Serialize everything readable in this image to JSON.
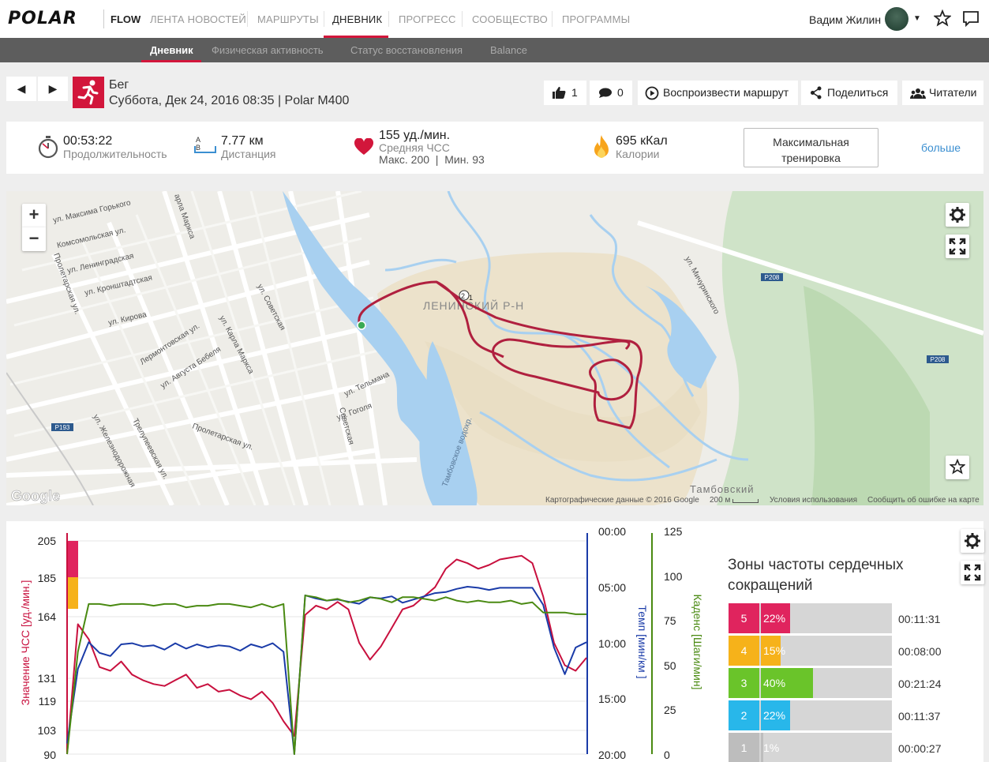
{
  "nav": {
    "logo": "POLAR",
    "flow": "FLOW",
    "items": [
      "ЛЕНТА НОВОСТЕЙ",
      "МАРШРУТЫ",
      "ДНЕВНИК",
      "ПРОГРЕСС",
      "СООБЩЕСТВО",
      "ПРОГРАММЫ"
    ],
    "active_index": 2,
    "user_name": "Вадим Жилин"
  },
  "subnav": {
    "items": [
      "Дневник",
      "Физическая активность",
      "Статус восстановления",
      "Balance"
    ],
    "active_index": 0
  },
  "session": {
    "sport": "Бег",
    "subtitle": "Суббота, Дек 24, 2016 08:35 | Polar M400",
    "likes": "1",
    "comments": "0",
    "replay_label": "Воспроизвести маршрут",
    "share_label": "Поделиться",
    "readers_label": "Читатели"
  },
  "summary": {
    "duration": "00:53:22",
    "duration_label": "Продолжительность",
    "distance": "7.77 км",
    "distance_label": "Дистанция",
    "distance_icon_text": "A B",
    "hr_value": "155 уд./мин.",
    "hr_label": "Средняя ЧСС",
    "hr_minmax": "Макс. 200  |  Мин. 93",
    "calories": "695 кКал",
    "calories_label": "Калории",
    "training_benefit": "Максимальная тренировка",
    "more_label": "больше"
  },
  "map": {
    "zoom_in": "+",
    "zoom_out": "−",
    "district_label": "ЛЕНИНСКИЙ Р-Н",
    "bottom_label": "Тамбовский",
    "lake_label": "Тамбовское водохр.",
    "google": "Google",
    "attribution": "Картографические данные © 2016 Google",
    "scale": "200 м",
    "terms": "Условия использования",
    "report": "Сообщить об ошибке на карте",
    "route_markers": [
      "2",
      "1"
    ],
    "road_labels": [
      "P208",
      "P208",
      "P193"
    ],
    "streets": [
      "ул. Максима Горького",
      "Комсомольская ул.",
      "ул. Ленинградская",
      "ул. Кронштадтская",
      "ул. Кирова",
      "Лермонтовская ул.",
      "ул. Августа Бебеля",
      "ул. Карла Маркса",
      "ул. Советская",
      "ул. Тельмана",
      "ул. Гоголя",
      "Пролетарская ул.",
      "ул. Железнодорожная",
      "Трелупеевская ул.",
      "ул. Мичуринского",
      "Советская",
      "арла Маркса"
    ]
  },
  "chart_data": {
    "type": "line",
    "title": "",
    "x_axis_visible_ticks": "partially cut off at bottom",
    "axes": {
      "hr": {
        "label": "Значение ЧСС [уд./мин.]",
        "ticks": [
          "205",
          "185",
          "164",
          "131",
          "119",
          "103",
          "90"
        ],
        "color": "#c8103e"
      },
      "pace": {
        "label": "Темп [мин/км ]",
        "ticks": [
          "00:00",
          "05:00",
          "10:00",
          "15:00",
          "20:00"
        ],
        "color": "#1a3ba8"
      },
      "cadence": {
        "label": "Каденс [Шаги/мин]",
        "ticks": [
          "125",
          "100",
          "75",
          "50",
          "25",
          "0"
        ],
        "color": "#4a8a12"
      }
    },
    "zone_bands": {
      "zones": [
        "5",
        "4"
      ],
      "colors": [
        "#e0245e",
        "#f6b21a"
      ]
    },
    "series": [
      {
        "name": "Значение ЧСС [уд./мин.]",
        "color": "#c8103e",
        "values": [
          90,
          160,
          152,
          137,
          135,
          140,
          133,
          130,
          128,
          127,
          130,
          133,
          126,
          128,
          124,
          125,
          122,
          120,
          124,
          118,
          108,
          100,
          165,
          170,
          168,
          172,
          168,
          150,
          141,
          148,
          158,
          168,
          170,
          175,
          180,
          190,
          195,
          193,
          190,
          192,
          195,
          196,
          197,
          193,
          175,
          150,
          138,
          135,
          142
        ]
      },
      {
        "name": "Темп [мин/км ]",
        "color": "#1a3ba8",
        "values": [
          19,
          12,
          9.5,
          10.5,
          10.8,
          9.7,
          9.6,
          9.9,
          9.8,
          10.2,
          9.6,
          10.1,
          9.7,
          10.0,
          9.8,
          9.9,
          10.3,
          9.7,
          10.0,
          9.6,
          10.4,
          20,
          5.1,
          5.4,
          5.6,
          5.5,
          5.7,
          5.9,
          5.3,
          5.4,
          5.2,
          5.8,
          5.5,
          5.2,
          4.9,
          4.8,
          4.5,
          4.3,
          4.4,
          4.6,
          4.4,
          4.4,
          4.4,
          4.4,
          6.0,
          10.0,
          12.5,
          10.0,
          9.5
        ]
      },
      {
        "name": "Каденс [Шаги/мин]",
        "color": "#4a8a12",
        "values": [
          0,
          60,
          88,
          88,
          87,
          88,
          88,
          88,
          87,
          88,
          88,
          86,
          87,
          87,
          88,
          88,
          87,
          86,
          88,
          86,
          88,
          0,
          93,
          92,
          90,
          91,
          89,
          90,
          92,
          91,
          89,
          92,
          92,
          91,
          90,
          92,
          90,
          89,
          90,
          89,
          89,
          90,
          88,
          89,
          83,
          83,
          83,
          82,
          82
        ]
      }
    ]
  },
  "zones": {
    "title": "Зоны частоты сердечных сокращений",
    "rows": [
      {
        "zone": "5",
        "pct": "22%",
        "time": "00:11:31",
        "color": "#e0245e",
        "fill": 0.22
      },
      {
        "zone": "4",
        "pct": "15%",
        "time": "00:08:00",
        "color": "#f6b21a",
        "fill": 0.15
      },
      {
        "zone": "3",
        "pct": "40%",
        "time": "00:21:24",
        "color": "#6ac42a",
        "fill": 0.4
      },
      {
        "zone": "2",
        "pct": "22%",
        "time": "00:11:37",
        "color": "#28b7ea",
        "fill": 0.22
      },
      {
        "zone": "1",
        "pct": "1%",
        "time": "00:00:27",
        "color": "#bdbdbd",
        "fill": 0.01
      }
    ]
  },
  "colors": {
    "brand": "#d2163b",
    "link": "#3b8fd1",
    "route": "#b0203f"
  }
}
